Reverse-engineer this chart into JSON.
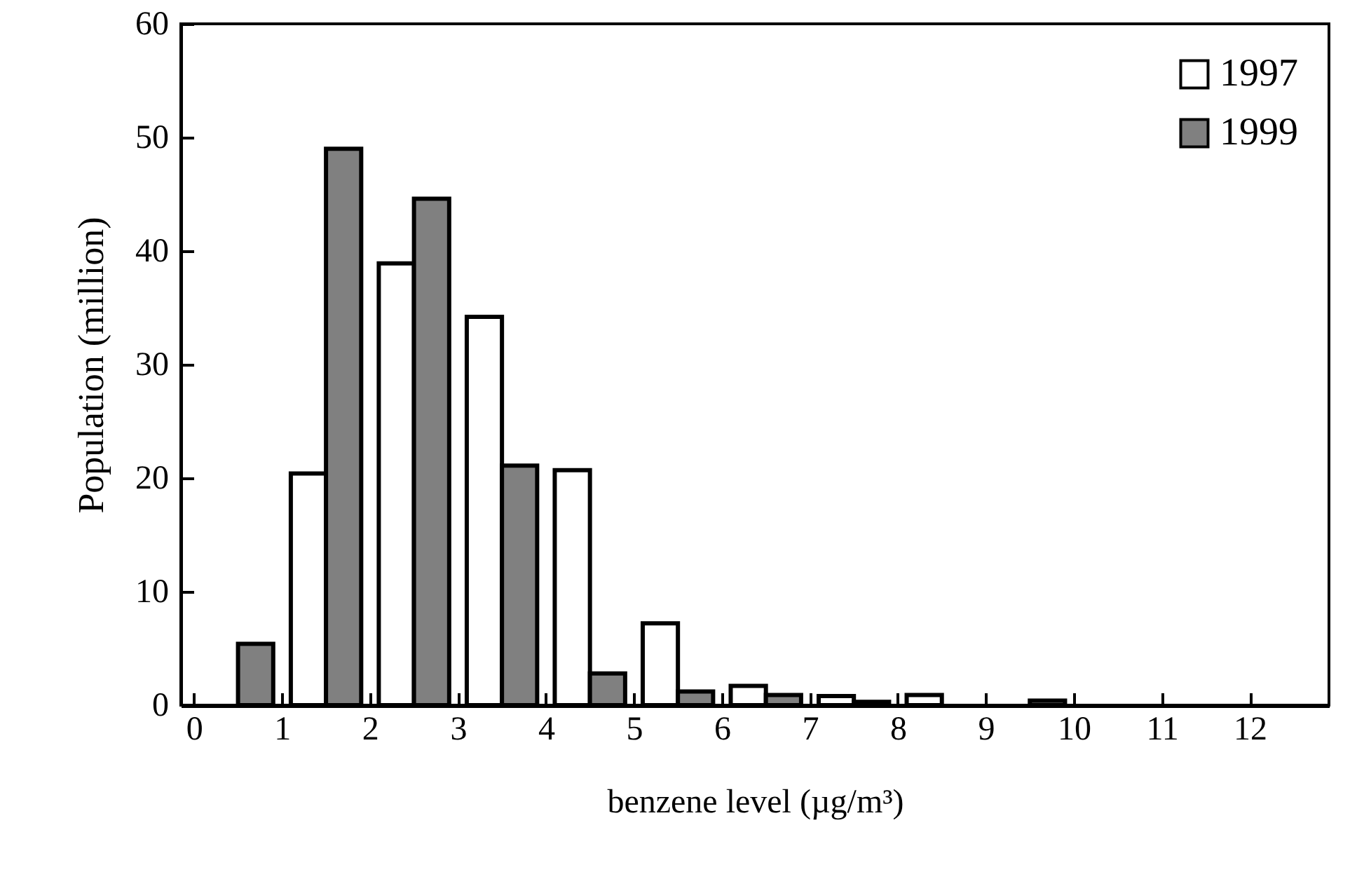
{
  "chart_data": {
    "type": "bar",
    "xlabel": "benzene level (µg/m³)",
    "ylabel": "Population (million)",
    "x": [
      0.5,
      1.5,
      2.5,
      3.5,
      4.5,
      5.5,
      6.5,
      7.5,
      8.5,
      9.5
    ],
    "series": [
      {
        "name": "1997",
        "color": "#ffffff",
        "values": [
          null,
          20.4,
          38.9,
          34.2,
          20.7,
          7.2,
          1.7,
          0.8,
          0.9,
          null
        ]
      },
      {
        "name": "1999",
        "color": "#808080",
        "values": [
          5.4,
          49.0,
          44.6,
          21.1,
          2.8,
          1.2,
          0.9,
          0.3,
          null,
          0.4
        ]
      }
    ],
    "xlim": [
      -0.15,
      12.9
    ],
    "xticks": [
      0,
      1,
      2,
      3,
      4,
      5,
      6,
      7,
      8,
      9,
      10,
      11,
      12
    ],
    "ylim": [
      0,
      60
    ],
    "yticks": [
      0,
      10,
      20,
      30,
      40,
      50,
      60
    ],
    "grid": false,
    "legend": "top right"
  }
}
